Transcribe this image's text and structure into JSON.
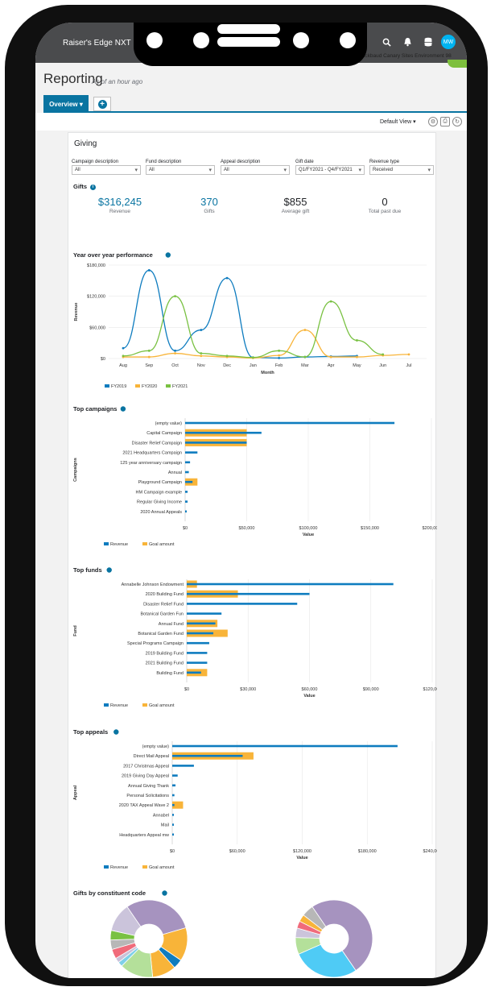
{
  "app": {
    "name": "Raiser's Edge NXT",
    "environment": "Blackbaud Canary Sites Environment 98",
    "user_initials": "MW"
  },
  "header": {
    "title": "Reporting",
    "subtitle": "As of an hour ago"
  },
  "tabs": {
    "overview": "Overview"
  },
  "view": {
    "label": "Default View"
  },
  "giving": {
    "title": "Giving",
    "filters": [
      {
        "label": "Campaign description",
        "value": "All"
      },
      {
        "label": "Fund description",
        "value": "All"
      },
      {
        "label": "Appeal description",
        "value": "All"
      },
      {
        "label": "Gift date",
        "value": "Q1/FY2021 - Q4/FY2021"
      },
      {
        "label": "Revenue type",
        "value": "Received"
      }
    ],
    "gifts_title": "Gifts",
    "kpis": [
      {
        "value": "$316,245",
        "label": "Revenue",
        "color": "#0974a1"
      },
      {
        "value": "370",
        "label": "Gifts",
        "color": "#0974a1"
      },
      {
        "value": "$855",
        "label": "Average gift",
        "color": "#212327"
      },
      {
        "value": "0",
        "label": "Total past due",
        "color": "#212327"
      }
    ]
  },
  "colors": {
    "fy2019": "#0e7cbf",
    "fy2020": "#f8b439",
    "fy2021": "#79c142",
    "revenue": "#0e7cbf",
    "goal": "#f8b439"
  },
  "chart_data": [
    {
      "type": "line",
      "title": "Year over year performance",
      "xlabel": "Month",
      "ylabel": "Revenue",
      "categories": [
        "Aug",
        "Sep",
        "Oct",
        "Nov",
        "Dec",
        "Jan",
        "Feb",
        "Mar",
        "Apr",
        "May",
        "Jun",
        "Jul"
      ],
      "yticks": [
        "$0",
        "$60,000",
        "$120,000",
        "$180,000"
      ],
      "ylim": [
        0,
        180000
      ],
      "series": [
        {
          "name": "FY2019",
          "values": [
            20000,
            170000,
            15000,
            55000,
            155000,
            2000,
            1000,
            3000,
            4000,
            5000,
            null,
            null
          ]
        },
        {
          "name": "FY2020",
          "values": [
            3000,
            3000,
            10000,
            5000,
            3000,
            1000,
            6000,
            55000,
            3000,
            3000,
            6000,
            8000
          ]
        },
        {
          "name": "FY2021",
          "values": [
            5000,
            15000,
            120000,
            10000,
            5000,
            2000,
            15000,
            3000,
            110000,
            35000,
            8000,
            null
          ]
        }
      ]
    },
    {
      "type": "bar",
      "title": "Top campaigns",
      "ylabel": "Campaigns",
      "xlabel": "Value",
      "categories": [
        "(empty value)",
        "Capital Campaign",
        "Disaster Relief Campaign",
        "2021 Headquarters Campaign",
        "125 year anniversary campaign",
        "Annual",
        "Playground Campaign",
        "HM Campaign example",
        "Regular Giving Income",
        "2020 Annual Appeals"
      ],
      "xticks": [
        "$0",
        "$50,000",
        "$100,000",
        "$150,000",
        "$200,000"
      ],
      "xlim": [
        0,
        200000
      ],
      "series": [
        {
          "name": "Revenue",
          "values": [
            170000,
            62000,
            50000,
            10000,
            4000,
            3000,
            6000,
            2000,
            2000,
            1000
          ]
        },
        {
          "name": "Goal amount",
          "values": [
            0,
            50000,
            50000,
            0,
            0,
            0,
            10000,
            0,
            0,
            0
          ]
        }
      ]
    },
    {
      "type": "bar",
      "title": "Top funds",
      "ylabel": "Fund",
      "xlabel": "Value",
      "categories": [
        "Annabelle Johnson Endowment",
        "2020 Building Fund",
        "Disaster Relief Fund",
        "Botanical Garden Fun",
        "Annual Fund",
        "Botanical Garden Fund",
        "Special Programs Campaign",
        "2019 Building Fund",
        "2021 Building Fund",
        "Building Fund"
      ],
      "xticks": [
        "$0",
        "$30,000",
        "$60,000",
        "$90,000",
        "$120,000"
      ],
      "xlim": [
        0,
        120000
      ],
      "series": [
        {
          "name": "Revenue",
          "values": [
            101000,
            60000,
            54000,
            17000,
            14000,
            13000,
            11000,
            10000,
            10000,
            7000
          ]
        },
        {
          "name": "Goal amount",
          "values": [
            5000,
            25000,
            0,
            0,
            15000,
            20000,
            0,
            0,
            0,
            10000
          ]
        }
      ]
    },
    {
      "type": "bar",
      "title": "Top appeals",
      "ylabel": "Appeal",
      "xlabel": "Value",
      "categories": [
        "(empty value)",
        "Direct Mail Appeal",
        "2017 Christmas Appeal",
        "2019 Giving Day Appeal",
        "Annual Giving Thank",
        "Personal Solicitations",
        "2020 TAX Appeal Wave 2",
        "Annabel",
        "Mail",
        "Headquarters Appeal mw"
      ],
      "xticks": [
        "$0",
        "$60,000",
        "$120,000",
        "$180,000",
        "$240,000"
      ],
      "xlim": [
        0,
        240000
      ],
      "series": [
        {
          "name": "Revenue",
          "values": [
            208000,
            65000,
            20000,
            5000,
            3000,
            2000,
            2000,
            1000,
            1000,
            1000
          ]
        },
        {
          "name": "Goal amount",
          "values": [
            0,
            75000,
            0,
            0,
            0,
            0,
            10000,
            0,
            0,
            0
          ]
        }
      ]
    },
    {
      "type": "pie",
      "title": "Gifts by constituent code",
      "pies": [
        {
          "values": [
            30,
            14,
            4,
            10,
            14,
            2,
            2,
            4,
            4,
            4,
            12
          ]
        },
        {
          "values": [
            50,
            28,
            7,
            4,
            3,
            3,
            5
          ]
        }
      ],
      "colors": [
        "#a693bf",
        "#f8b439",
        "#0e7cbf",
        "#f8b439",
        "#b4e09a",
        "#7fd0e8",
        "#c9c1d9",
        "#f06b7b",
        "#b7b7b7",
        "#79c142",
        "#cbc4db"
      ]
    }
  ]
}
